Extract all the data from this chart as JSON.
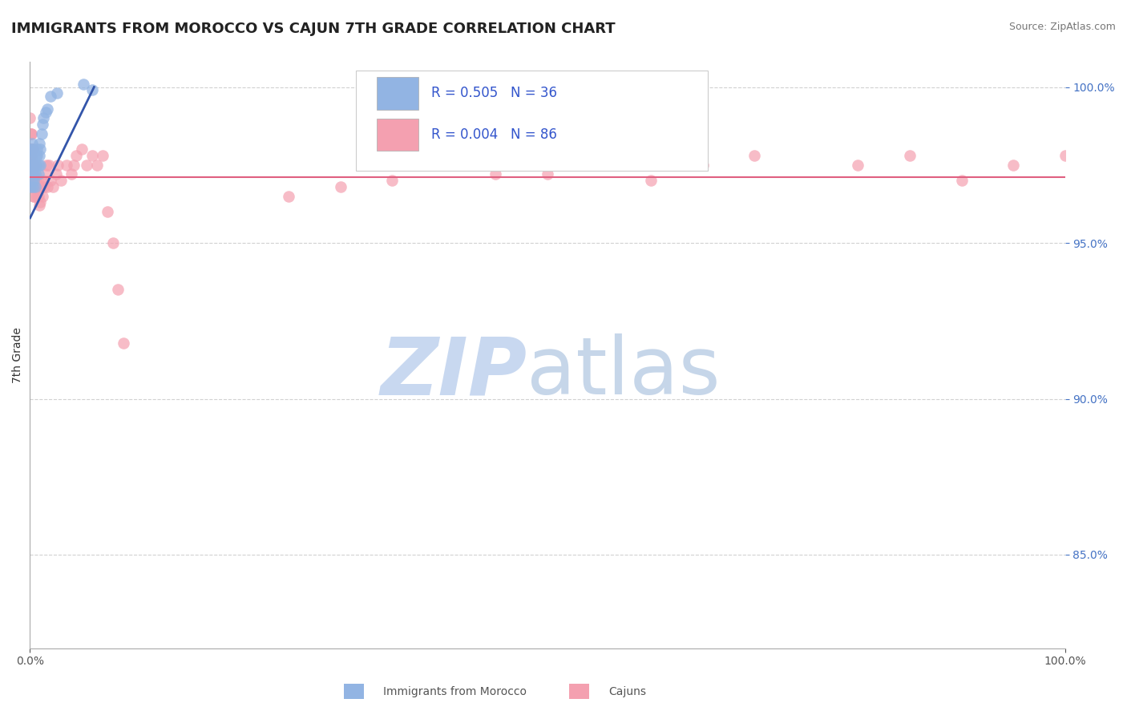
{
  "title": "IMMIGRANTS FROM MOROCCO VS CAJUN 7TH GRADE CORRELATION CHART",
  "source": "Source: ZipAtlas.com",
  "ylabel": "7th Grade",
  "xlim": [
    0.0,
    1.0
  ],
  "ylim": [
    0.82,
    1.008
  ],
  "yticks": [
    0.85,
    0.9,
    0.95,
    1.0
  ],
  "ytick_labels": [
    "85.0%",
    "90.0%",
    "95.0%",
    "100.0%"
  ],
  "legend_blue_r": "R = 0.505",
  "legend_blue_n": "N = 36",
  "legend_pink_r": "R = 0.004",
  "legend_pink_n": "N = 86",
  "legend_label_blue": "Immigrants from Morocco",
  "legend_label_pink": "Cajuns",
  "blue_color": "#92b4e3",
  "pink_color": "#f4a0b0",
  "trendline_blue_color": "#3355aa",
  "trendline_pink_color": "#e06080",
  "background_color": "#ffffff",
  "blue_scatter_x": [
    0.0005,
    0.001,
    0.001,
    0.0012,
    0.0015,
    0.002,
    0.002,
    0.0022,
    0.0025,
    0.003,
    0.003,
    0.0035,
    0.004,
    0.004,
    0.005,
    0.005,
    0.005,
    0.006,
    0.006,
    0.007,
    0.007,
    0.008,
    0.008,
    0.009,
    0.009,
    0.01,
    0.01,
    0.011,
    0.012,
    0.013,
    0.015,
    0.017,
    0.02,
    0.026,
    0.052,
    0.06
  ],
  "blue_scatter_y": [
    0.968,
    0.972,
    0.978,
    0.98,
    0.975,
    0.978,
    0.982,
    0.97,
    0.975,
    0.98,
    0.968,
    0.972,
    0.975,
    0.97,
    0.975,
    0.968,
    0.972,
    0.978,
    0.975,
    0.98,
    0.978,
    0.975,
    0.972,
    0.978,
    0.982,
    0.98,
    0.975,
    0.985,
    0.988,
    0.99,
    0.992,
    0.993,
    0.997,
    0.998,
    1.001,
    0.999
  ],
  "pink_scatter_x": [
    0.0001,
    0.0002,
    0.0002,
    0.0003,
    0.0004,
    0.0004,
    0.0005,
    0.0005,
    0.0006,
    0.0007,
    0.0008,
    0.0008,
    0.0009,
    0.001,
    0.001,
    0.001,
    0.0011,
    0.0012,
    0.0013,
    0.0015,
    0.0015,
    0.0016,
    0.0018,
    0.002,
    0.002,
    0.0022,
    0.0025,
    0.003,
    0.003,
    0.003,
    0.0035,
    0.004,
    0.004,
    0.004,
    0.005,
    0.005,
    0.006,
    0.006,
    0.007,
    0.007,
    0.008,
    0.008,
    0.009,
    0.01,
    0.01,
    0.011,
    0.012,
    0.013,
    0.014,
    0.015,
    0.016,
    0.017,
    0.018,
    0.02,
    0.022,
    0.025,
    0.027,
    0.03,
    0.035,
    0.04,
    0.042,
    0.045,
    0.05,
    0.055,
    0.06,
    0.065,
    0.07,
    0.075,
    0.08,
    0.085,
    0.09,
    0.6,
    0.65,
    0.7,
    0.8,
    0.85,
    0.9,
    0.95,
    1.0,
    0.5,
    0.55,
    0.35,
    0.4,
    0.45,
    0.3,
    0.25
  ],
  "pink_scatter_y": [
    0.99,
    0.985,
    0.978,
    0.975,
    0.975,
    0.97,
    0.98,
    0.975,
    0.972,
    0.968,
    0.975,
    0.97,
    0.968,
    0.985,
    0.978,
    0.975,
    0.972,
    0.97,
    0.968,
    0.985,
    0.98,
    0.975,
    0.972,
    0.98,
    0.975,
    0.972,
    0.975,
    0.98,
    0.972,
    0.968,
    0.965,
    0.975,
    0.97,
    0.965,
    0.972,
    0.968,
    0.975,
    0.97,
    0.968,
    0.965,
    0.97,
    0.965,
    0.962,
    0.968,
    0.963,
    0.968,
    0.965,
    0.97,
    0.968,
    0.972,
    0.975,
    0.968,
    0.975,
    0.97,
    0.968,
    0.972,
    0.975,
    0.97,
    0.975,
    0.972,
    0.975,
    0.978,
    0.98,
    0.975,
    0.978,
    0.975,
    0.978,
    0.96,
    0.95,
    0.935,
    0.918,
    0.97,
    0.975,
    0.978,
    0.975,
    0.978,
    0.97,
    0.975,
    0.978,
    0.972,
    0.975,
    0.97,
    0.975,
    0.972,
    0.968,
    0.965
  ],
  "pink_trendline_y": 0.971,
  "blue_trendline_x0": 0.0002,
  "blue_trendline_y0": 0.958,
  "blue_trendline_x1": 0.062,
  "blue_trendline_y1": 1.0
}
